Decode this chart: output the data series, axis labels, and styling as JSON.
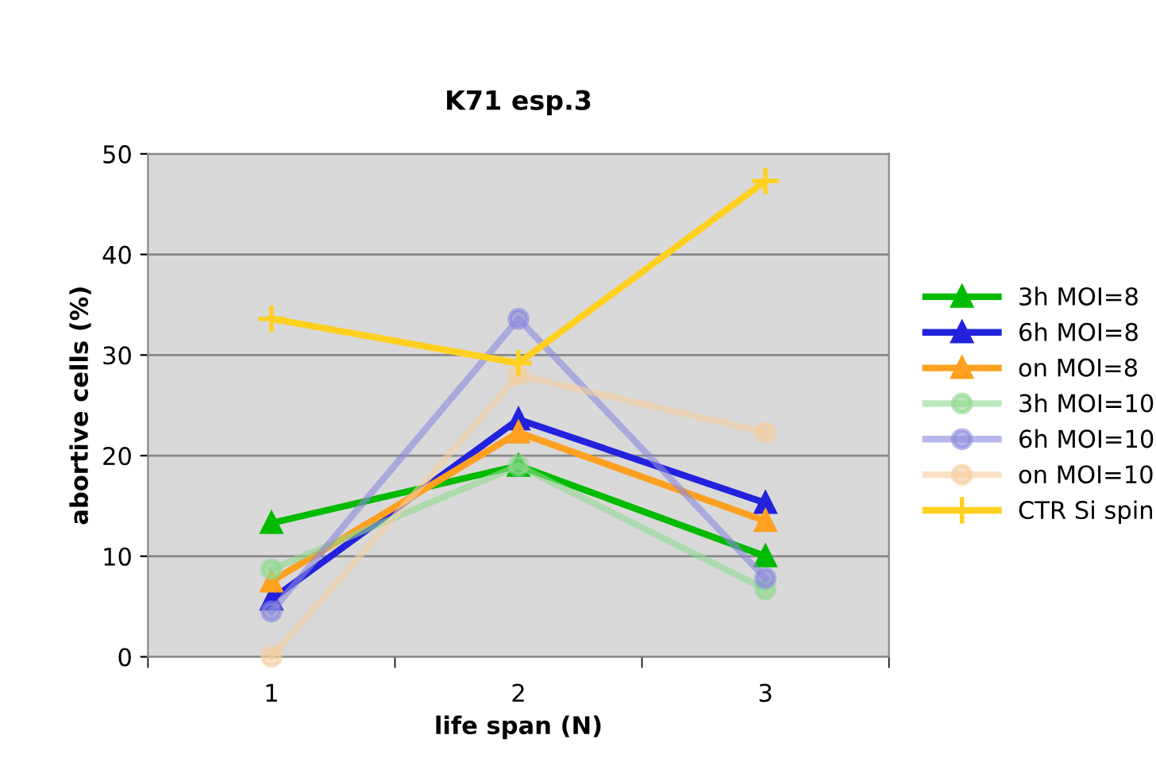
{
  "chart_data": {
    "type": "line",
    "title": "K71 esp.3",
    "xlabel": "life span (N)",
    "ylabel": "abortive cells (%)",
    "categories": [
      "1",
      "2",
      "3"
    ],
    "series": [
      {
        "name": "3h MOI=8",
        "color": "#00bb00",
        "marker": "triangle",
        "values": [
          13.3,
          19.0,
          10.0
        ]
      },
      {
        "name": "6h MOI=8",
        "color": "#2222dd",
        "marker": "triangle",
        "values": [
          5.7,
          23.6,
          15.3
        ]
      },
      {
        "name": "on MOI=8",
        "color": "#ffa020",
        "marker": "triangle",
        "values": [
          7.5,
          22.3,
          13.5
        ]
      },
      {
        "name": "3h MOI=10",
        "color": "#8fd88f",
        "marker": "circle",
        "values": [
          8.7,
          19.0,
          6.7
        ]
      },
      {
        "name": "6h MOI=10",
        "color": "#8a88dd",
        "marker": "circle",
        "values": [
          4.5,
          33.6,
          7.8
        ]
      },
      {
        "name": "on MOI=10",
        "color": "#f5cfa0",
        "marker": "circle",
        "values": [
          0,
          28.0,
          22.3
        ]
      },
      {
        "name": "CTR Si spin",
        "color": "#ffd020",
        "marker": "cross",
        "values": [
          33.6,
          29.2,
          47.3
        ]
      }
    ],
    "ylim": [
      0,
      50
    ],
    "yticks": [
      0,
      10,
      20,
      30,
      40,
      50
    ],
    "grid": "y",
    "legend": "right"
  }
}
